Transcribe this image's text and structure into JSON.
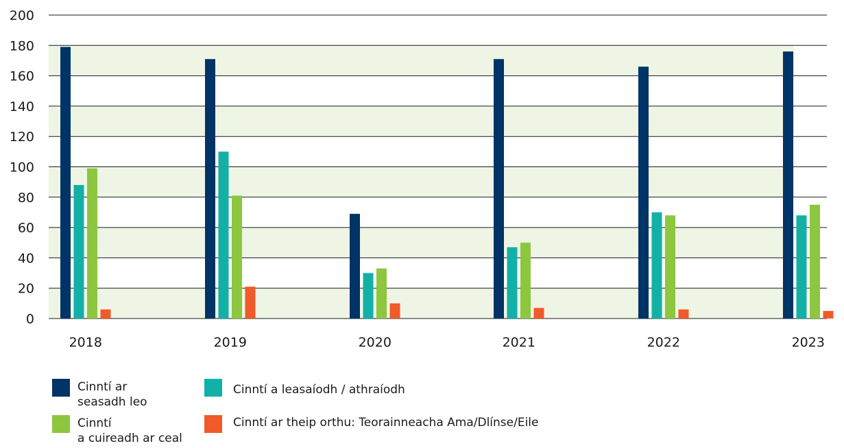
{
  "chart_data": {
    "type": "bar",
    "categories": [
      "2018",
      "2019",
      "2020",
      "2021",
      "2022",
      "2023"
    ],
    "series": [
      {
        "name": "Cinntí ar\nseasadh leo",
        "color": "#003366",
        "values": [
          179,
          171,
          69,
          171,
          166,
          176
        ]
      },
      {
        "name": "Cinntí a leasaíodh / athraíodh",
        "color": "#13b0a8",
        "values": [
          88,
          110,
          30,
          47,
          70,
          68
        ]
      },
      {
        "name": "Cinntí\na cuireadh ar ceal",
        "color": "#8dc63f",
        "values": [
          99,
          81,
          33,
          50,
          68,
          75
        ]
      },
      {
        "name": "Cinntí ar theip orthu: Teorainneacha Ama/Dlínse/Eile",
        "color": "#f15a29",
        "values": [
          6,
          21,
          10,
          7,
          6,
          5
        ]
      }
    ],
    "ylim": [
      0,
      200
    ],
    "yticks": [
      0,
      20,
      40,
      60,
      80,
      100,
      120,
      140,
      160,
      180,
      200
    ],
    "grid": true,
    "band_color": "#eef5e4",
    "legend_position": "bottom-left"
  }
}
